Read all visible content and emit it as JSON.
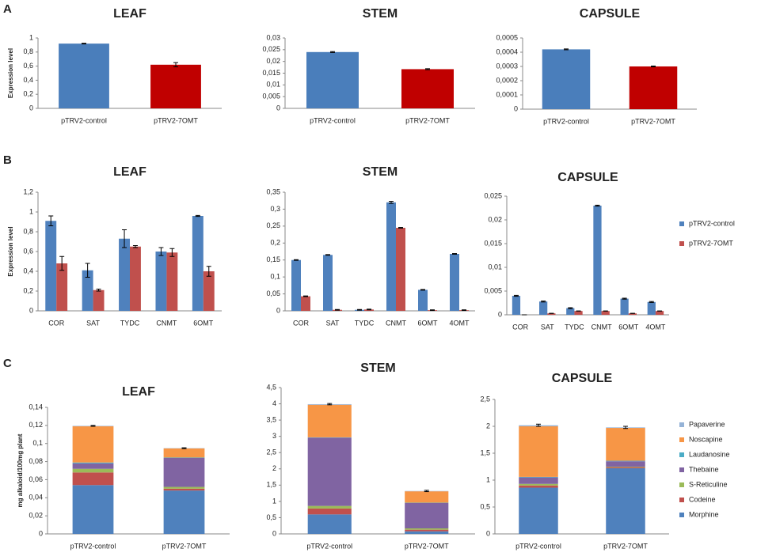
{
  "panels": [
    "A",
    "B",
    "C"
  ],
  "chart_data": [
    {
      "type": "bar",
      "title": "LEAF",
      "ylabel": "Expression level",
      "categories": [
        "pTRV2-control",
        "pTRV2-7OMT"
      ],
      "values": [
        0.92,
        0.62
      ],
      "errors": [
        0.005,
        0.03
      ],
      "colors": [
        "#4a7ebb",
        "#c00000"
      ],
      "ylim": [
        0,
        1
      ],
      "yticks": [
        0,
        {
          "value": 0.2,
          "label": "0,2"
        },
        {
          "value": 0.4,
          "label": "0,4"
        },
        {
          "value": 0.6,
          "label": "0,6"
        },
        {
          "value": 0.8,
          "label": "0,8"
        },
        1
      ]
    },
    {
      "type": "bar",
      "title": "STEM",
      "categories": [
        "pTRV2-control",
        "pTRV2-7OMT"
      ],
      "values": [
        0.024,
        0.0167
      ],
      "errors": [
        0.0002,
        0.0002
      ],
      "colors": [
        "#4a7ebb",
        "#c00000"
      ],
      "ylim": [
        0,
        0.03
      ],
      "yticks": [
        0,
        {
          "value": 0.005,
          "label": "0,005"
        },
        {
          "value": 0.01,
          "label": "0,01"
        },
        {
          "value": 0.015,
          "label": "0,015"
        },
        {
          "value": 0.02,
          "label": "0,02"
        },
        {
          "value": 0.025,
          "label": "0,025"
        },
        {
          "value": 0.03,
          "label": "0,03"
        }
      ]
    },
    {
      "type": "bar",
      "title": "CAPSULE",
      "categories": [
        "pTRV2-control",
        "pTRV2-7OMT"
      ],
      "values": [
        0.00042,
        0.0003
      ],
      "errors": [
        3e-06,
        3e-06
      ],
      "colors": [
        "#4a7ebb",
        "#c00000"
      ],
      "ylim": [
        0,
        0.0005
      ],
      "yticks": [
        0,
        {
          "value": 0.0001,
          "label": "0,0001"
        },
        {
          "value": 0.0002,
          "label": "0,0002"
        },
        {
          "value": 0.0003,
          "label": "0,0003"
        },
        {
          "value": 0.0004,
          "label": "0,0004"
        },
        {
          "value": 0.0005,
          "label": "0,0005"
        }
      ]
    },
    {
      "type": "grouped_bar",
      "title": "LEAF",
      "ylabel": "Expression level",
      "categories": [
        "COR",
        "SAT",
        "TYDC",
        "CNMT",
        "6OMT"
      ],
      "series": [
        {
          "color": "#4f81bd",
          "values": [
            0.91,
            0.41,
            0.73,
            0.6,
            0.96
          ],
          "errors": [
            0.05,
            0.07,
            0.09,
            0.04,
            0.005
          ]
        },
        {
          "color": "#c0504d",
          "values": [
            0.48,
            0.21,
            0.65,
            0.59,
            0.4
          ],
          "errors": [
            0.07,
            0.01,
            0.01,
            0.04,
            0.05
          ]
        }
      ],
      "ylim": [
        0,
        1.2
      ],
      "yticks": [
        0,
        {
          "value": 0.2,
          "label": "0,2"
        },
        {
          "value": 0.4,
          "label": "0,4"
        },
        {
          "value": 0.6,
          "label": "0,6"
        },
        {
          "value": 0.8,
          "label": "0,8"
        },
        1,
        {
          "value": 1.2,
          "label": "1,2"
        }
      ]
    },
    {
      "type": "grouped_bar",
      "title": "STEM",
      "categories": [
        "COR",
        "SAT",
        "TYDC",
        "CNMT",
        "6OMT",
        "4OMT"
      ],
      "series": [
        {
          "color": "#4f81bd",
          "values": [
            0.15,
            0.165,
            0.003,
            0.32,
            0.062,
            0.168
          ],
          "errors": [
            0.001,
            0.001,
            0.001,
            0.003,
            0.001,
            0.001
          ]
        },
        {
          "color": "#c0504d",
          "values": [
            0.043,
            0.003,
            0.004,
            0.245,
            0.002,
            0.002
          ],
          "errors": [
            0.001,
            0.001,
            0.001,
            0.001,
            0.001,
            0.001
          ]
        }
      ],
      "ylim": [
        0,
        0.35
      ],
      "yticks": [
        0,
        {
          "value": 0.05,
          "label": "0,05"
        },
        {
          "value": 0.1,
          "label": "0,1"
        },
        {
          "value": 0.15,
          "label": "0,15"
        },
        {
          "value": 0.2,
          "label": "0,2"
        },
        {
          "value": 0.25,
          "label": "0,25"
        },
        {
          "value": 0.3,
          "label": "0,3"
        },
        {
          "value": 0.35,
          "label": "0,35"
        }
      ]
    },
    {
      "type": "grouped_bar",
      "title": "CAPSULE",
      "categories": [
        "COR",
        "SAT",
        "TYDC",
        "CNMT",
        "6OMT",
        "4OMT"
      ],
      "legend": "right",
      "series": [
        {
          "name": "pTRV2-control",
          "color": "#4f81bd",
          "values": [
            0.004,
            0.0028,
            0.0014,
            0.023,
            0.0034,
            0.0027
          ],
          "errors": [
            0.0001,
            0.0001,
            0.0001,
            0.0001,
            0.0001,
            0.0001
          ]
        },
        {
          "name": "pTRV2-7OMT",
          "color": "#c0504d",
          "values": [
            0,
            0.0003,
            0.0008,
            0.0008,
            0.0003,
            0.0008
          ],
          "errors": [
            0,
            0,
            0,
            0,
            0,
            0
          ]
        }
      ],
      "ylim": [
        0,
        0.025
      ],
      "yticks": [
        0,
        {
          "value": 0.005,
          "label": "0,005"
        },
        {
          "value": 0.01,
          "label": "0,01"
        },
        {
          "value": 0.015,
          "label": "0,015"
        },
        {
          "value": 0.02,
          "label": "0,02"
        },
        {
          "value": 0.025,
          "label": "0,025"
        }
      ]
    },
    {
      "type": "stacked_bar",
      "title": "LEAF",
      "ylabel": "mg alkaloid/100mg plant",
      "categories": [
        "pTRV2-control",
        "pTRV2-7OMT"
      ],
      "series": [
        {
          "color": "#4f81bd",
          "values": [
            0.054,
            0.048
          ]
        },
        {
          "color": "#c0504d",
          "values": [
            0.014,
            0.002
          ]
        },
        {
          "color": "#9bbb59",
          "values": [
            0.004,
            0.002
          ]
        },
        {
          "color": "#8064a2",
          "values": [
            0.006,
            0.032
          ]
        },
        {
          "color": "#4bacc6",
          "values": [
            0.001,
            0.0005
          ]
        },
        {
          "color": "#f79646",
          "values": [
            0.04,
            0.01
          ]
        },
        {
          "color": "#95b3d7",
          "values": [
            0.0005,
            0.0003
          ]
        }
      ],
      "errors": [
        0.0005,
        0.0005
      ],
      "ylim": [
        0,
        0.14
      ],
      "yticks": [
        0,
        {
          "value": 0.02,
          "label": "0,02"
        },
        {
          "value": 0.04,
          "label": "0,04"
        },
        {
          "value": 0.06,
          "label": "0,06"
        },
        {
          "value": 0.08,
          "label": "0,08"
        },
        {
          "value": 0.1,
          "label": "0,1"
        },
        {
          "value": 0.12,
          "label": "0,12"
        },
        {
          "value": 0.14,
          "label": "0,14"
        }
      ]
    },
    {
      "type": "stacked_bar",
      "title": "STEM",
      "categories": [
        "pTRV2-control",
        "pTRV2-7OMT"
      ],
      "series": [
        {
          "color": "#4f81bd",
          "values": [
            0.6,
            0.08
          ]
        },
        {
          "color": "#c0504d",
          "values": [
            0.18,
            0.05
          ]
        },
        {
          "color": "#9bbb59",
          "values": [
            0.08,
            0.04
          ]
        },
        {
          "color": "#8064a2",
          "values": [
            2.1,
            0.78
          ]
        },
        {
          "color": "#4bacc6",
          "values": [
            0.01,
            0.01
          ]
        },
        {
          "color": "#f79646",
          "values": [
            1.0,
            0.35
          ]
        },
        {
          "color": "#95b3d7",
          "values": [
            0.02,
            0.01
          ]
        }
      ],
      "errors": [
        0.02,
        0.02
      ],
      "ylim": [
        0,
        4.5
      ],
      "yticks": [
        0,
        {
          "value": 0.5,
          "label": "0,5"
        },
        1,
        {
          "value": 1.5,
          "label": "1,5"
        },
        2,
        {
          "value": 2.5,
          "label": "2,5"
        },
        3,
        {
          "value": 3.5,
          "label": "3,5"
        },
        4,
        {
          "value": 4.5,
          "label": "4,5"
        }
      ]
    },
    {
      "type": "stacked_bar",
      "title": "CAPSULE",
      "categories": [
        "pTRV2-control",
        "pTRV2-7OMT"
      ],
      "legend": "right",
      "series": [
        {
          "name": "Morphine",
          "color": "#4f81bd",
          "values": [
            0.86,
            1.22
          ]
        },
        {
          "name": "Codeine",
          "color": "#c0504d",
          "values": [
            0.04,
            0.02
          ]
        },
        {
          "name": "S-Reticuline",
          "color": "#9bbb59",
          "values": [
            0.03,
            0.01
          ]
        },
        {
          "name": "Thebaine",
          "color": "#8064a2",
          "values": [
            0.12,
            0.1
          ]
        },
        {
          "name": "Laudanosine",
          "color": "#4bacc6",
          "values": [
            0.01,
            0.01
          ]
        },
        {
          "name": "Noscapine",
          "color": "#f79646",
          "values": [
            0.94,
            0.61
          ]
        },
        {
          "name": "Papaverine",
          "color": "#95b3d7",
          "values": [
            0.02,
            0.01
          ]
        }
      ],
      "errors": [
        0.02,
        0.02
      ],
      "ylim": [
        0,
        2.5
      ],
      "yticks": [
        0,
        {
          "value": 0.5,
          "label": "0,5"
        },
        1,
        {
          "value": 1.5,
          "label": "1,5"
        },
        2,
        {
          "value": 2.5,
          "label": "2,5"
        }
      ]
    }
  ]
}
